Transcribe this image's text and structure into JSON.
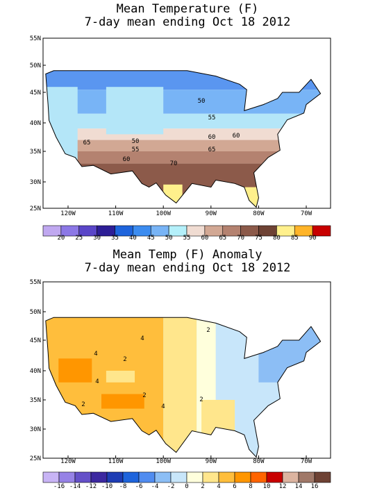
{
  "panels": [
    {
      "title": [
        "Mean Temperature (F)",
        "7-day mean ending Oct 18 2012"
      ],
      "lat_labels": [
        "55N",
        "50N",
        "45N",
        "40N",
        "35N",
        "30N",
        "25N"
      ],
      "lon_labels": [
        "120W",
        "110W",
        "100W",
        "90W",
        "80W",
        "70W"
      ],
      "contour_labels": [
        "50",
        "55",
        "60",
        "60",
        "65",
        "50",
        "55",
        "60",
        "65",
        "70"
      ],
      "colorbar": {
        "colors": [
          "#c0a8f0",
          "#8c78e6",
          "#5a46c8",
          "#2d1e96",
          "#1e64dc",
          "#3c8cf0",
          "#78b4f6",
          "#b4f0fa",
          "#f0dcd2",
          "#d2a894",
          "#b48270",
          "#8c5a4a",
          "#6e4234",
          "#fff08c",
          "#ffb428",
          "#c80000"
        ],
        "labels": [
          "20",
          "25",
          "30",
          "35",
          "40",
          "45",
          "50",
          "55",
          "60",
          "65",
          "70",
          "75",
          "80",
          "85",
          "90"
        ]
      }
    },
    {
      "title": [
        "Mean Temp (F) Anomaly",
        "7-day mean ending Oct 18 2012"
      ],
      "lat_labels": [
        "55N",
        "50N",
        "45N",
        "40N",
        "35N",
        "30N",
        "25N"
      ],
      "lon_labels": [
        "120W",
        "110W",
        "100W",
        "90W",
        "80W",
        "70W"
      ],
      "contour_labels": [
        "4",
        "4",
        "2",
        "4",
        "2",
        "2",
        "4",
        "2",
        "2"
      ],
      "colorbar": {
        "colors": [
          "#c8b4f5",
          "#9682e6",
          "#6450c8",
          "#3c28a0",
          "#1e3cb4",
          "#1e64dc",
          "#508cf0",
          "#8cbef5",
          "#c8e6fa",
          "#ffffdc",
          "#ffe68c",
          "#ffbe3c",
          "#ff9600",
          "#ff6400",
          "#c80000",
          "#dcb4a0",
          "#a07868",
          "#6e4234"
        ],
        "labels": [
          "-16",
          "-14",
          "-12",
          "-10",
          "-8",
          "-6",
          "-4",
          "-2",
          "0",
          "2",
          "4",
          "6",
          "8",
          "10",
          "12",
          "14",
          "16"
        ]
      }
    }
  ]
}
